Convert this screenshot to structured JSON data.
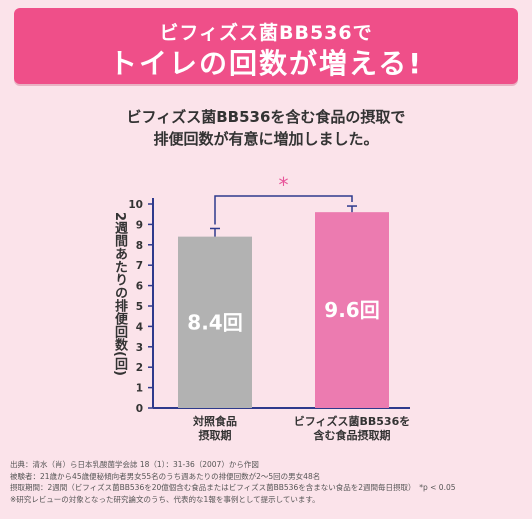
{
  "banner": {
    "line1": "ビフィズス菌BB536で",
    "line2": "トイレの回数が増える!"
  },
  "subtitle": {
    "line1": "ビフィズス菌BB536を含む食品の摂取で",
    "line2": "排便回数が有意に増加しました。"
  },
  "colors": {
    "banner": "#ef4f89",
    "background": "#fbe3ea",
    "bar_control": "#b2b2b2",
    "bar_bb536": "#ec7bb0",
    "axis": "#2e3a8c",
    "significance": "#e8559a"
  },
  "chart_data": {
    "type": "bar",
    "ylabel": "2週間あたりの排便回数(回)",
    "categories": [
      [
        "対照食品",
        "摂取期"
      ],
      [
        "ビフィズス菌BB536を",
        "含む食品摂取期"
      ]
    ],
    "values": [
      8.4,
      9.6
    ],
    "value_labels": [
      "8.4回",
      "9.6回"
    ],
    "error_upper": [
      8.8,
      9.9
    ],
    "ylim": [
      0,
      10
    ],
    "yticks": [
      0,
      1,
      2,
      3,
      4,
      5,
      6,
      7,
      8,
      9,
      10
    ],
    "significance_marker": "*"
  },
  "notes": [
    "出典：清水（肖）ら日本乳酸菌学会誌 18（1）：31-36（2007）から作図",
    "被験者：21歳から45歳便秘傾向者男女55名のうち週あたりの排便回数が2〜5回の男女48名",
    "摂取期間：2週間（ビフィズス菌BB536を20億個含む食品またはビフィズス菌BB536を含まない食品を2週間毎日摂取）　*p < 0.05",
    "※研究レビューの対象となった研究論文のうち、代表的な1報を事例として提示しています。"
  ]
}
